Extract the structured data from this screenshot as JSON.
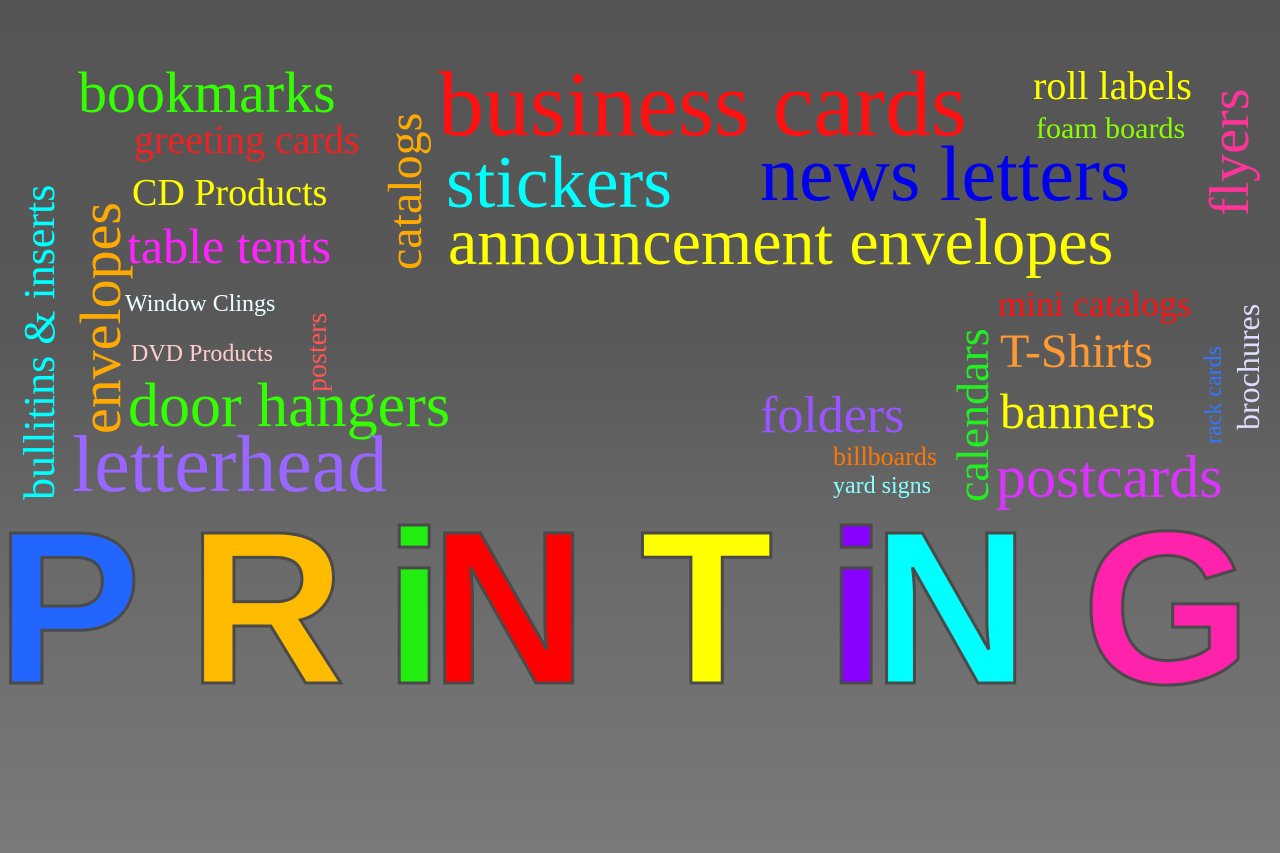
{
  "words": {
    "bookmarks": "bookmarks",
    "greeting_cards": "greeting cards",
    "cd_products": "CD Products",
    "table_tents": "table tents",
    "catalogs": "catalogs",
    "business_cards": "business cards",
    "roll_labels": "roll labels",
    "foam_boards": "foam boards",
    "flyers": "flyers",
    "stickers": "stickers",
    "news_letters": "news letters",
    "announcement_envelopes": "announcement envelopes",
    "bullitins_inserts": "bullitins & inserts",
    "envelopes": "envelopes",
    "window_clings": "Window Clings",
    "posters": "posters",
    "dvd_products": "DVD Products",
    "door_hangers": "door hangers",
    "letterhead": "letterhead",
    "mini_catalogs": "mini catalogs",
    "t_shirts": "T-Shirts",
    "banners": "banners",
    "postcards": "postcards",
    "calendars": "calendars",
    "rack_cards": "rack cards",
    "brochures": "brochures",
    "folders": "folders",
    "billboards": "billboards",
    "yard_signs": "yard signs"
  },
  "printing_letters": [
    "P",
    "R",
    "i",
    "N",
    "T",
    "i",
    "N",
    "G"
  ],
  "colors": {
    "P": "#2266ff",
    "R": "#ffbb00",
    "i1": "#22ee11",
    "N1": "#ff0000",
    "T": "#ffff00",
    "i2": "#8800ff",
    "N2": "#00ffff",
    "G": "#ff22aa",
    "bookmarks": "#33ff00",
    "greeting_cards": "#ee2222",
    "cd_products": "#ffff00",
    "table_tents": "#ff22ff",
    "catalogs": "#ffaa00",
    "business_cards": "#ff1111",
    "roll_labels": "#ffff00",
    "foam_boards": "#88ff00",
    "flyers": "#ff3399",
    "stickers": "#00ffff",
    "news_letters": "#0000ee",
    "announcement_envelopes": "#ffff00",
    "bullitins_inserts": "#00ffff",
    "envelopes": "#ffaa00",
    "window_clings": "#eeffff",
    "posters": "#ff5555",
    "dvd_products": "#ffcccc",
    "door_hangers": "#33ff00",
    "letterhead": "#9966ff",
    "mini_catalogs": "#ff1111",
    "t_shirts": "#ff9933",
    "banners": "#ffff00",
    "postcards": "#dd33ff",
    "calendars": "#22ee22",
    "rack_cards": "#3377ff",
    "brochures": "#ddddff",
    "folders": "#9955ff",
    "billboards": "#ff7700",
    "yard_signs": "#88ffff"
  }
}
